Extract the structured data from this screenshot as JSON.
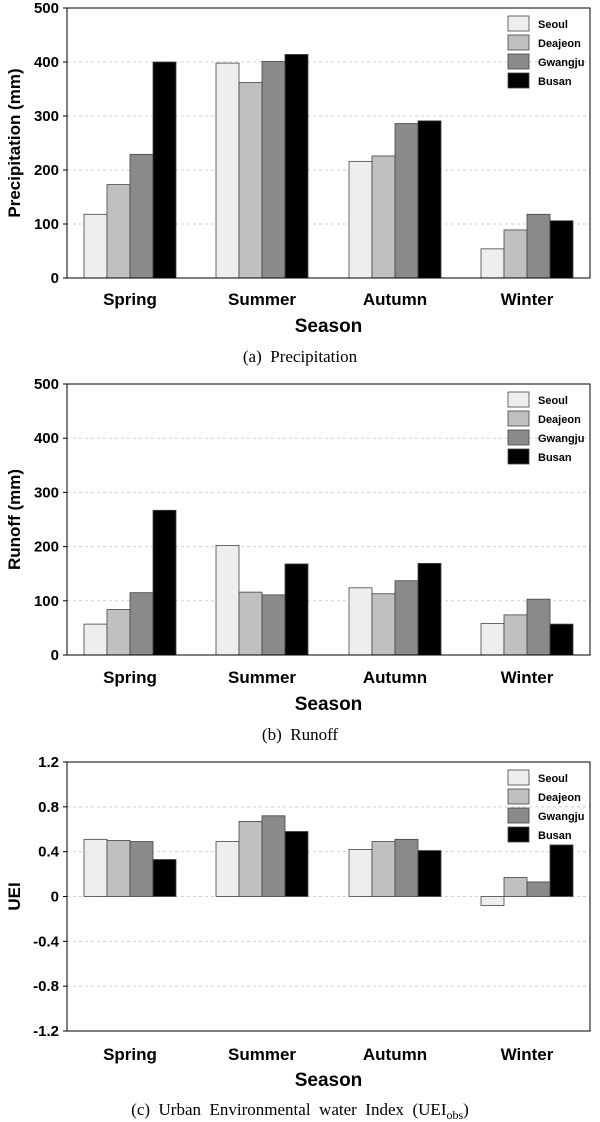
{
  "chart_data": [
    {
      "type": "bar",
      "categories": [
        "Spring",
        "Summer",
        "Autumn",
        "Winter"
      ],
      "series": [
        {
          "name": "Seoul",
          "values": [
            118,
            398,
            216,
            54
          ]
        },
        {
          "name": "Deajeon",
          "values": [
            173,
            362,
            226,
            89
          ]
        },
        {
          "name": "Gwangju",
          "values": [
            229,
            401,
            286,
            118
          ]
        },
        {
          "name": "Busan",
          "values": [
            400,
            414,
            291,
            106
          ]
        }
      ],
      "xlabel": "Season",
      "ylabel": "Precipitation (mm)",
      "ylim": [
        0,
        500
      ],
      "yticks": [
        0,
        100,
        200,
        300,
        400,
        500
      ],
      "tick_labels": [
        "0",
        "100",
        "200",
        "300",
        "400",
        "500"
      ],
      "caption": "(a)  Precipitation",
      "grid": true,
      "legend": "top-right",
      "colors": [
        "#eeeeee",
        "#c0c0c0",
        "#8a8a8a",
        "#000000"
      ]
    },
    {
      "type": "bar",
      "categories": [
        "Spring",
        "Summer",
        "Autumn",
        "Winter"
      ],
      "series": [
        {
          "name": "Seoul",
          "values": [
            57,
            202,
            124,
            58
          ]
        },
        {
          "name": "Deajeon",
          "values": [
            84,
            116,
            113,
            74
          ]
        },
        {
          "name": "Gwangju",
          "values": [
            115,
            111,
            137,
            103
          ]
        },
        {
          "name": "Busan",
          "values": [
            267,
            168,
            169,
            57
          ]
        }
      ],
      "xlabel": "Season",
      "ylabel": "Runoff (mm)",
      "ylim": [
        0,
        500
      ],
      "yticks": [
        0,
        100,
        200,
        300,
        400,
        500
      ],
      "tick_labels": [
        "0",
        "100",
        "200",
        "300",
        "400",
        "500"
      ],
      "caption": "(b)  Runoff",
      "grid": true,
      "legend": "top-right",
      "colors": [
        "#eeeeee",
        "#c0c0c0",
        "#8a8a8a",
        "#000000"
      ]
    },
    {
      "type": "bar",
      "categories": [
        "Spring",
        "Summer",
        "Autumn",
        "Winter"
      ],
      "series": [
        {
          "name": "Seoul",
          "values": [
            0.51,
            0.49,
            0.42,
            -0.08
          ]
        },
        {
          "name": "Deajeon",
          "values": [
            0.5,
            0.67,
            0.49,
            0.17
          ]
        },
        {
          "name": "Gwangju",
          "values": [
            0.49,
            0.72,
            0.51,
            0.13
          ]
        },
        {
          "name": "Busan",
          "values": [
            0.33,
            0.58,
            0.41,
            0.46
          ]
        }
      ],
      "xlabel": "Season",
      "ylabel": "UEI",
      "ylim": [
        -1.2,
        1.2
      ],
      "yticks": [
        -1.2,
        -0.8,
        -0.4,
        0,
        0.4,
        0.8,
        1.2
      ],
      "tick_labels": [
        "-1.2",
        "-0.8",
        "-0.4",
        "0",
        "0.4",
        "0.8",
        "1.2"
      ],
      "caption": "(c)  Urban  Environmental  water  Index  (UEI",
      "caption_sub": "obs",
      "caption_end": ")",
      "grid": true,
      "legend": "top-right",
      "colors": [
        "#eeeeee",
        "#c0c0c0",
        "#8a8a8a",
        "#000000"
      ]
    }
  ]
}
